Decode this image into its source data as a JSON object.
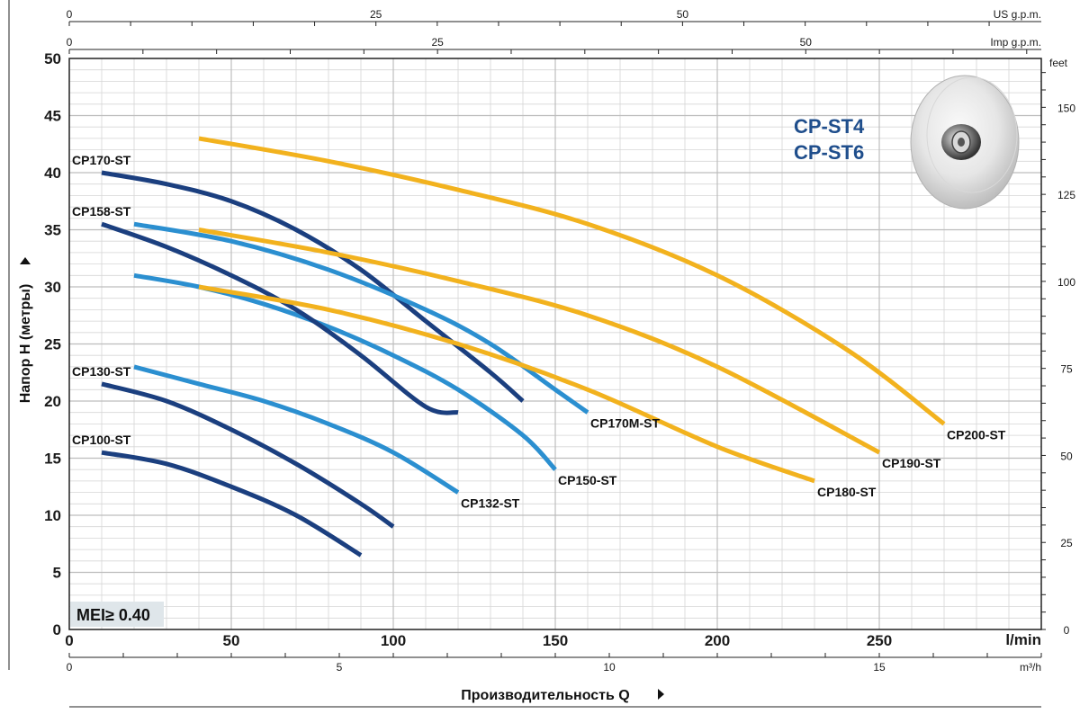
{
  "chart_data": {
    "type": "line",
    "title_lines": [
      "CP-ST4",
      "CP-ST6"
    ],
    "title_color": "#1f4e8c",
    "ylabel": "Напор H (метры)",
    "xlabel": "Производительность Q",
    "x_unit": "l/min",
    "xlim": [
      0,
      300
    ],
    "ylim": [
      0,
      50
    ],
    "x_ticks": [
      0,
      50,
      100,
      150,
      200,
      250
    ],
    "x_tick_labels": [
      "0",
      "50",
      "100",
      "150",
      "200",
      "250"
    ],
    "y_ticks": [
      0,
      5,
      10,
      15,
      20,
      25,
      30,
      35,
      40,
      45,
      50
    ],
    "y_tick_labels": [
      "0",
      "5",
      "10",
      "15",
      "20",
      "25",
      "30",
      "35",
      "40",
      "45",
      "50"
    ],
    "secondary_axes": {
      "us_gpm": {
        "label": "US g.p.m.",
        "ticks": [
          0,
          25,
          50
        ],
        "tick_labels": [
          "0",
          "25",
          "50"
        ]
      },
      "imp_gpm": {
        "label": "Imp g.p.m.",
        "ticks": [
          0,
          25,
          50
        ],
        "tick_labels": [
          "0",
          "25",
          "50"
        ]
      },
      "m3h": {
        "label": "m³/h",
        "ticks": [
          0,
          5,
          10,
          15
        ],
        "tick_labels": [
          "0",
          "5",
          "10",
          "15"
        ]
      },
      "feet": {
        "label": "feet",
        "ticks": [
          0,
          25,
          50,
          75,
          100,
          125,
          150
        ],
        "tick_labels": [
          "0",
          "25",
          "50",
          "75",
          "100",
          "125",
          "150"
        ]
      }
    },
    "grid": true,
    "badge": "MEI≥ 0.40",
    "colors": {
      "dark_blue": "#1b3f7f",
      "light_blue": "#2b8fd0",
      "orange": "#f2b21e"
    },
    "series": [
      {
        "name": "CP100-ST",
        "color": "#1b3f7f",
        "label_pos": "start",
        "x": [
          10,
          30,
          50,
          70,
          90
        ],
        "y": [
          15.5,
          14.5,
          12.5,
          10,
          6.5
        ]
      },
      {
        "name": "CP130-ST",
        "color": "#1b3f7f",
        "label_pos": "start",
        "x": [
          10,
          30,
          50,
          70,
          90,
          100
        ],
        "y": [
          21.5,
          20,
          17.5,
          14.5,
          11,
          9
        ]
      },
      {
        "name": "CP132-ST",
        "color": "#2b8fd0",
        "label_pos": "end",
        "x": [
          20,
          40,
          60,
          80,
          100,
          120
        ],
        "y": [
          23,
          21.5,
          20,
          18,
          15.5,
          12
        ]
      },
      {
        "name": "CP150-ST",
        "color": "#2b8fd0",
        "label_pos": "end",
        "x": [
          20,
          40,
          60,
          80,
          100,
          120,
          140,
          150
        ],
        "y": [
          31,
          30,
          28.5,
          26.5,
          24,
          21,
          17,
          14
        ]
      },
      {
        "name": "CP158-ST",
        "color": "#1b3f7f",
        "label_pos": "start",
        "x": [
          10,
          30,
          50,
          70,
          90,
          110,
          120
        ],
        "y": [
          35.5,
          33.5,
          31,
          28,
          24,
          19.5,
          19
        ]
      },
      {
        "name": "CP170-ST",
        "color": "#1b3f7f",
        "label_pos": "start",
        "x": [
          10,
          30,
          50,
          70,
          90,
          110,
          130,
          140
        ],
        "y": [
          40,
          39,
          37.5,
          35,
          31.5,
          27,
          22.5,
          20
        ]
      },
      {
        "name": "CP170M-ST",
        "color": "#2b8fd0",
        "label_pos": "end",
        "x": [
          20,
          50,
          80,
          110,
          130,
          150,
          160
        ],
        "y": [
          35.5,
          34,
          31.5,
          28,
          25,
          21,
          19
        ]
      },
      {
        "name": "CP180-ST",
        "color": "#f2b21e",
        "label_pos": "end",
        "x": [
          40,
          80,
          120,
          160,
          200,
          230
        ],
        "y": [
          30,
          28,
          25,
          21,
          16,
          13
        ]
      },
      {
        "name": "CP190-ST",
        "color": "#f2b21e",
        "label_pos": "end",
        "x": [
          40,
          80,
          120,
          160,
          200,
          250
        ],
        "y": [
          35,
          33,
          30.5,
          27.5,
          23,
          15.5
        ]
      },
      {
        "name": "CP200-ST",
        "color": "#f2b21e",
        "label_pos": "end",
        "x": [
          40,
          80,
          120,
          160,
          200,
          240,
          270
        ],
        "y": [
          43,
          41,
          38.5,
          35.5,
          31,
          24.5,
          18
        ]
      }
    ]
  }
}
